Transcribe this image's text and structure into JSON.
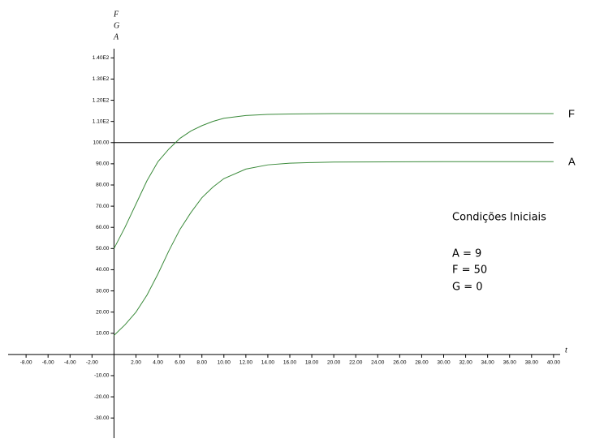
{
  "chart_data": {
    "type": "line",
    "x_label": "t",
    "y_labels": [
      "F",
      "G",
      "A"
    ],
    "x": [
      0,
      1,
      2,
      3,
      4,
      5,
      6,
      7,
      8,
      9,
      10,
      12,
      14,
      16,
      18,
      20,
      25,
      30,
      35,
      40
    ],
    "series": [
      {
        "name": "F",
        "color": "#3a8a3a",
        "values": [
          50,
          60,
          71,
          82,
          91,
          97,
          102,
          105.5,
          108,
          110,
          111.5,
          112.8,
          113.3,
          113.5,
          113.6,
          113.7,
          113.7,
          113.7,
          113.7,
          113.7
        ]
      },
      {
        "name": "A",
        "color": "#3a8a3a",
        "values": [
          9,
          14,
          20,
          28,
          38,
          49,
          59,
          67,
          74,
          79,
          83,
          87.5,
          89.5,
          90.3,
          90.6,
          90.8,
          90.9,
          91,
          91,
          91
        ]
      }
    ],
    "reference_line": {
      "value": 100,
      "color": "#000000"
    },
    "xlim": [
      -8.6,
      40.6
    ],
    "ylim": [
      -39.5,
      152
    ],
    "xticks": [
      {
        "value": -8,
        "label": "-8.00"
      },
      {
        "value": -6,
        "label": "-6.00"
      },
      {
        "value": -4,
        "label": "-4.00"
      },
      {
        "value": -2,
        "label": "-2.00"
      },
      {
        "value": 2,
        "label": "2.00"
      },
      {
        "value": 4,
        "label": "4.00"
      },
      {
        "value": 6,
        "label": "6.00"
      },
      {
        "value": 8,
        "label": "8.00"
      },
      {
        "value": 10,
        "label": "10.00"
      },
      {
        "value": 12,
        "label": "12.00"
      },
      {
        "value": 14,
        "label": "14.00"
      },
      {
        "value": 16,
        "label": "16.00"
      },
      {
        "value": 18,
        "label": "18.00"
      },
      {
        "value": 20,
        "label": "20.00"
      },
      {
        "value": 22,
        "label": "22.00"
      },
      {
        "value": 24,
        "label": "24.00"
      },
      {
        "value": 26,
        "label": "26.00"
      },
      {
        "value": 28,
        "label": "28.00"
      },
      {
        "value": 30,
        "label": "30.00"
      },
      {
        "value": 32,
        "label": "32.00"
      },
      {
        "value": 34,
        "label": "34.00"
      },
      {
        "value": 36,
        "label": "36.00"
      },
      {
        "value": 38,
        "label": "38.00"
      },
      {
        "value": 40,
        "label": "40.00"
      }
    ],
    "yticks": [
      {
        "value": -30,
        "label": "-30.00"
      },
      {
        "value": -20,
        "label": "-20.00"
      },
      {
        "value": -10,
        "label": "-10.00"
      },
      {
        "value": 10,
        "label": "10.00"
      },
      {
        "value": 20,
        "label": "20.00"
      },
      {
        "value": 30,
        "label": "30.00"
      },
      {
        "value": 40,
        "label": "40.00"
      },
      {
        "value": 50,
        "label": "50.00"
      },
      {
        "value": 60,
        "label": "60.00"
      },
      {
        "value": 70,
        "label": "70.00"
      },
      {
        "value": 80,
        "label": "80.00"
      },
      {
        "value": 90,
        "label": "90.00"
      },
      {
        "value": 100,
        "label": "100.00"
      },
      {
        "value": 110,
        "label": "1.10E2"
      },
      {
        "value": 120,
        "label": "1.20E2"
      },
      {
        "value": 130,
        "label": "1.30E2"
      },
      {
        "value": 140,
        "label": "1.40E2"
      }
    ],
    "annotation": {
      "title": "Condições Iniciais",
      "lines": [
        "A = 9",
        "F = 50",
        "G = 0"
      ]
    }
  }
}
